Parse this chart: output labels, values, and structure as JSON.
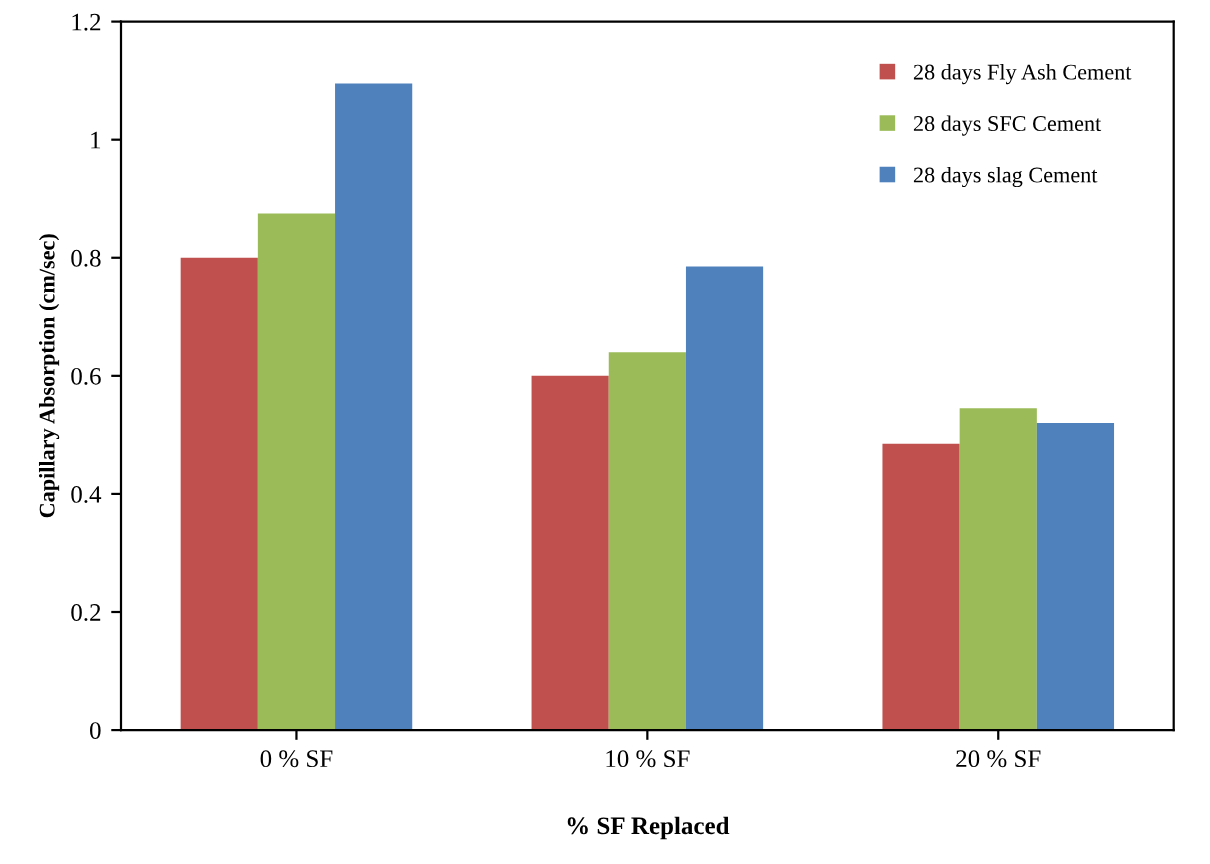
{
  "chart_data": {
    "type": "bar",
    "xlabel": "% SF Replaced",
    "ylabel": "Capillary Absorption (cm/sec)",
    "categories": [
      "0 % SF",
      "10 % SF",
      "20 % SF"
    ],
    "series": [
      {
        "name": "28 days Fly Ash Cement",
        "color": "#c0504d",
        "values": [
          0.8,
          0.6,
          0.485
        ]
      },
      {
        "name": "28 days SFC Cement",
        "color": "#9bbb59",
        "values": [
          0.875,
          0.64,
          0.545
        ]
      },
      {
        "name": "28 days slag Cement",
        "color": "#4f81bd",
        "values": [
          1.095,
          0.785,
          0.52
        ]
      }
    ],
    "ylim": [
      0,
      1.2
    ],
    "yticks": [
      0,
      0.2,
      0.4,
      0.6,
      0.8,
      1,
      1.2
    ],
    "grid": false,
    "legend": "top right"
  }
}
